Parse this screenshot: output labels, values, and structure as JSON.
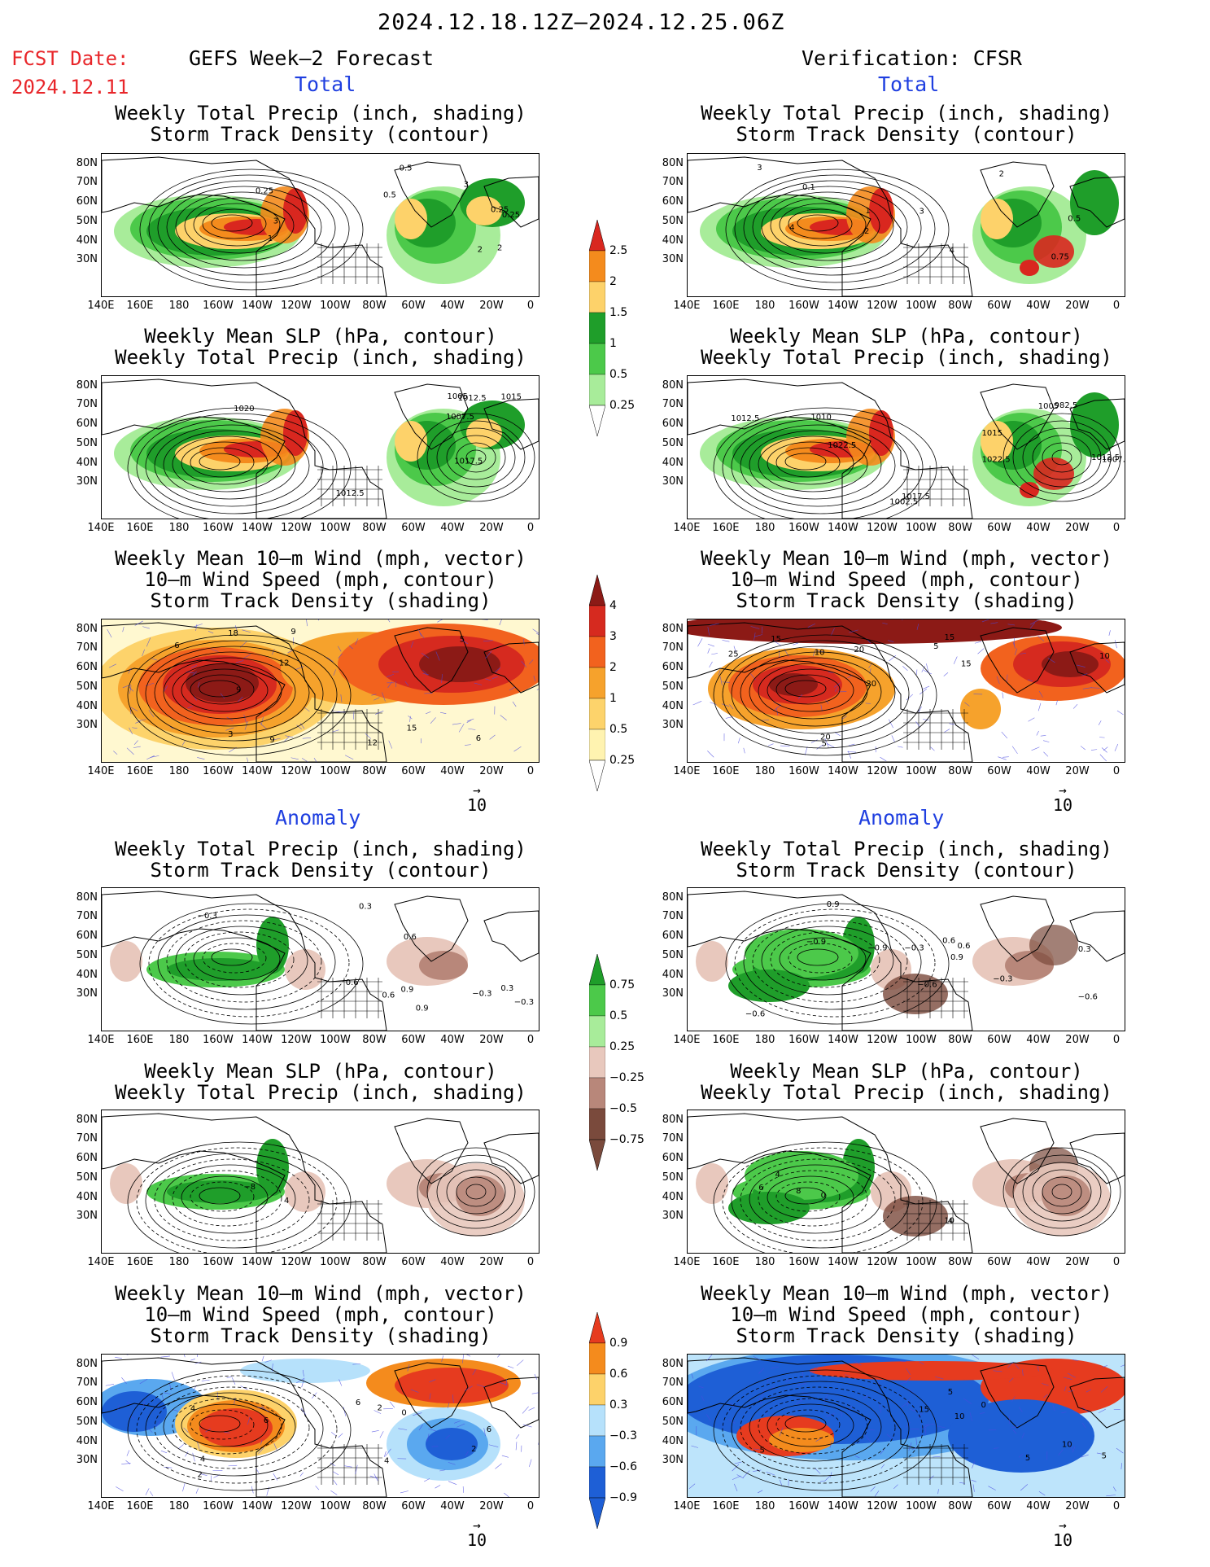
{
  "header": {
    "period": "2024.12.18.12Z–2024.12.25.06Z",
    "fcst_label": "FCST Date:",
    "fcst_date": "2024.12.11",
    "left_title": "GEFS Week–2 Forecast",
    "right_title": "Verification: CFSR",
    "section_total": "Total",
    "section_anomaly": "Anomaly"
  },
  "panel_titles": {
    "precip_track": [
      "Weekly Total Precip (inch, shading)",
      "Storm Track Density (contour)"
    ],
    "slp_precip": [
      "Weekly Mean SLP (hPa, contour)",
      "Weekly Total Precip (inch, shading)"
    ],
    "wind_track": [
      "Weekly Mean 10–m Wind (mph, vector)",
      "10–m Wind Speed (mph, contour)",
      "Storm Track Density (shading)"
    ]
  },
  "axes": {
    "lat": [
      "80N",
      "70N",
      "60N",
      "50N",
      "40N",
      "30N"
    ],
    "lon": [
      "140E",
      "160E",
      "180",
      "160W",
      "140W",
      "120W",
      "100W",
      "80W",
      "60W",
      "40W",
      "20W",
      "0"
    ]
  },
  "colorbars": {
    "precip_total": {
      "labels": [
        "2.5",
        "2",
        "1.5",
        "1",
        "0.5",
        "0.25"
      ],
      "colors": [
        "#d9271f",
        "#f48b1d",
        "#fdd26a",
        "#1f9e2a",
        "#4cc94a",
        "#a8ec9a"
      ]
    },
    "track_total": {
      "labels": [
        "4",
        "3",
        "2",
        "1",
        "0.5",
        "0.25"
      ],
      "colors": [
        "#8c1a16",
        "#d62a1f",
        "#f2621e",
        "#f6a22c",
        "#fdd36b",
        "#fff3b0"
      ]
    },
    "precip_anom": {
      "labels": [
        "0.75",
        "0.5",
        "0.25",
        "−0.25",
        "−0.5",
        "−0.75"
      ],
      "colors": [
        "#1f9e2a",
        "#4cc94a",
        "#a8ec9a",
        "#e8c8bd",
        "#b8877a",
        "#7a4a3c"
      ]
    },
    "track_anom": {
      "labels": [
        "0.9",
        "0.6",
        "0.3",
        "−0.3",
        "−0.6",
        "−0.9"
      ],
      "colors": [
        "#e63b1f",
        "#f48b1d",
        "#fdd26a",
        "#b6e1fb",
        "#5aa8ef",
        "#1e5fd6"
      ]
    }
  },
  "vector_ref": "10",
  "contour_labels": {
    "L1": [
      "0.25",
      "0.25",
      "0.5",
      "0.25",
      "3",
      "2",
      "1",
      "0.5",
      "2",
      "3"
    ],
    "R1": [
      "3",
      "0.5",
      "2",
      "4",
      "1",
      "0.75",
      "0.1",
      "4",
      "3",
      "2"
    ],
    "L2": [
      "1012.5",
      "1020",
      "1015",
      "1017.5",
      "1007.5",
      "1012.5",
      "1005"
    ],
    "R2": [
      "1012.5",
      "1010",
      "1015",
      "1017.5",
      "1005",
      "1002.5",
      "1022.5",
      "1022.5",
      "982.5",
      "1007.5",
      "1012.5"
    ],
    "L3": [
      "9",
      "12",
      "3",
      "15",
      "18",
      "6",
      "9",
      "6",
      "9",
      "12",
      "5"
    ],
    "R3": [
      "5",
      "15",
      "10",
      "20",
      "20",
      "25",
      "15",
      "20",
      "15",
      "10",
      "5"
    ],
    "L4": [
      "−0.3",
      "0.3",
      "0.6",
      "0.3",
      "0.9",
      "0.6",
      "0.9",
      "−0.3",
      "−0.3",
      "0.6"
    ],
    "R4": [
      "−0.6",
      "−0.6",
      "0.9",
      "−0.9",
      "−0.3",
      "0.6",
      "0.9",
      "−0.3",
      "−0.9",
      "−0.6",
      "0.6",
      "0.3"
    ],
    "L5": [
      "4",
      "−8"
    ],
    "R5": [
      "4",
      "0",
      "10",
      "6",
      "4",
      "8"
    ],
    "L6": [
      "6",
      "2",
      "4",
      "6",
      "6",
      "2",
      "4",
      "4",
      "0",
      "2"
    ],
    "R6": [
      "5",
      "10",
      "10",
      "5",
      "5",
      "5",
      "15",
      "0"
    ]
  }
}
